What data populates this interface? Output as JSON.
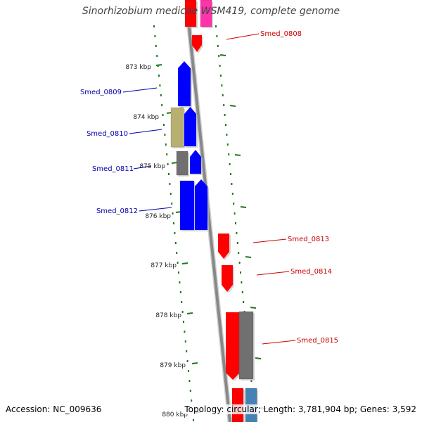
{
  "title": "Sinorhizobium medicae WSM419, complete genome",
  "footer": {
    "accession": "Accession: NC_009636",
    "topology": "Topology: circular; Length: 3,781,904 bp; Genes: 3,592"
  },
  "colors": {
    "backbone": "#888888",
    "ticks": "#1a7a1a",
    "forward_label": "#0000aa",
    "reverse_label": "#cc0000",
    "blue": "#0000ff",
    "red": "#ff0000",
    "olive": "#b8b070",
    "gray": "#707070",
    "pink": "#ff33aa",
    "steel": "#4682b4"
  },
  "scale_labels": [
    "873 kbp",
    "874 kbp",
    "875 kbp",
    "876 kbp",
    "877 kbp",
    "878 kbp",
    "879 kbp",
    "880 kbp"
  ],
  "gene_labels": {
    "left": [
      "Smed_0809",
      "Smed_0810",
      "Smed_0811",
      "Smed_0812"
    ],
    "right": [
      "Smed_0808",
      "Smed_0813",
      "Smed_0814",
      "Smed_0815"
    ]
  }
}
